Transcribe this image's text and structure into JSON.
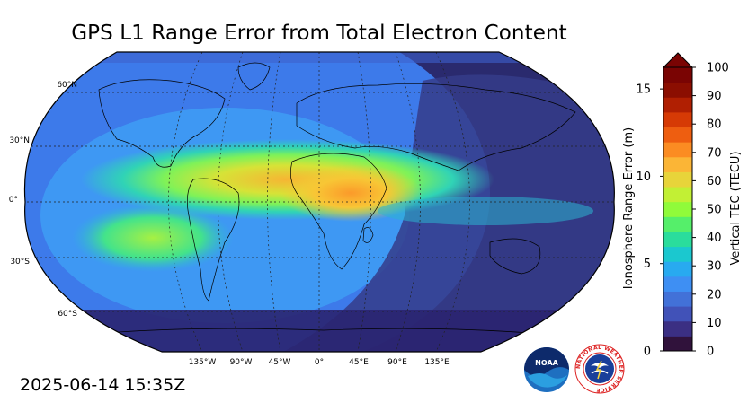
{
  "title": "GPS L1 Range Error from Total Electron Content",
  "timestamp": "2025-06-14 15:35Z",
  "map": {
    "latitude_labels": [
      "60°N",
      "30°N",
      "0°",
      "30°S",
      "60°S"
    ],
    "longitude_labels": [
      "135°W",
      "90°W",
      "45°W",
      "0°",
      "45°E",
      "90°E",
      "135°E"
    ]
  },
  "colorbar": {
    "left_axis_label": "Ionosphere Range Error (m)",
    "right_axis_label": "Vertical TEC (TECU)",
    "left_ticks": [
      "0",
      "5",
      "10",
      "15"
    ],
    "right_ticks": [
      "0",
      "10",
      "20",
      "30",
      "40",
      "50",
      "60",
      "70",
      "80",
      "90",
      "100"
    ],
    "colors": [
      "#30123b",
      "#3b2f83",
      "#4152b8",
      "#4271d8",
      "#3e8ff3",
      "#28aaf0",
      "#1bc8cf",
      "#2add9c",
      "#55ef6a",
      "#90fb3a",
      "#c2f034",
      "#e8d43a",
      "#fbb536",
      "#fb8c22",
      "#ee5e10",
      "#d63a05",
      "#b01f02",
      "#8b0e01",
      "#7a0403"
    ]
  },
  "logos": {
    "noaa_text": "NOAA",
    "nws_text": "NATIONAL WEATHER SERVICE"
  }
}
